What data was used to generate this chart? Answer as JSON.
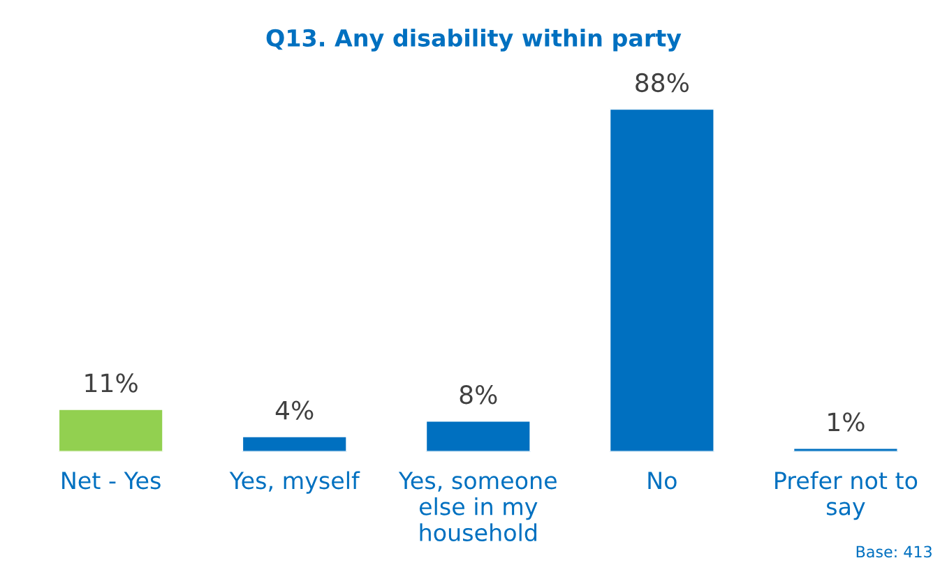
{
  "chart_data": {
    "type": "bar",
    "title": "Q13. Any disability within party",
    "categories": [
      "Net - Yes",
      "Yes, myself",
      "Yes, someone else in my household",
      "No",
      "Prefer not to say"
    ],
    "values": [
      11,
      4,
      8,
      88,
      1
    ],
    "colors": [
      "#92d050",
      "#0070c0",
      "#0070c0",
      "#0070c0",
      "#0070c0"
    ],
    "value_labels": [
      "11%",
      "4%",
      "8%",
      "88%",
      "1%"
    ],
    "annotations": [
      "Base: 413"
    ],
    "grid": false,
    "legend": false
  }
}
